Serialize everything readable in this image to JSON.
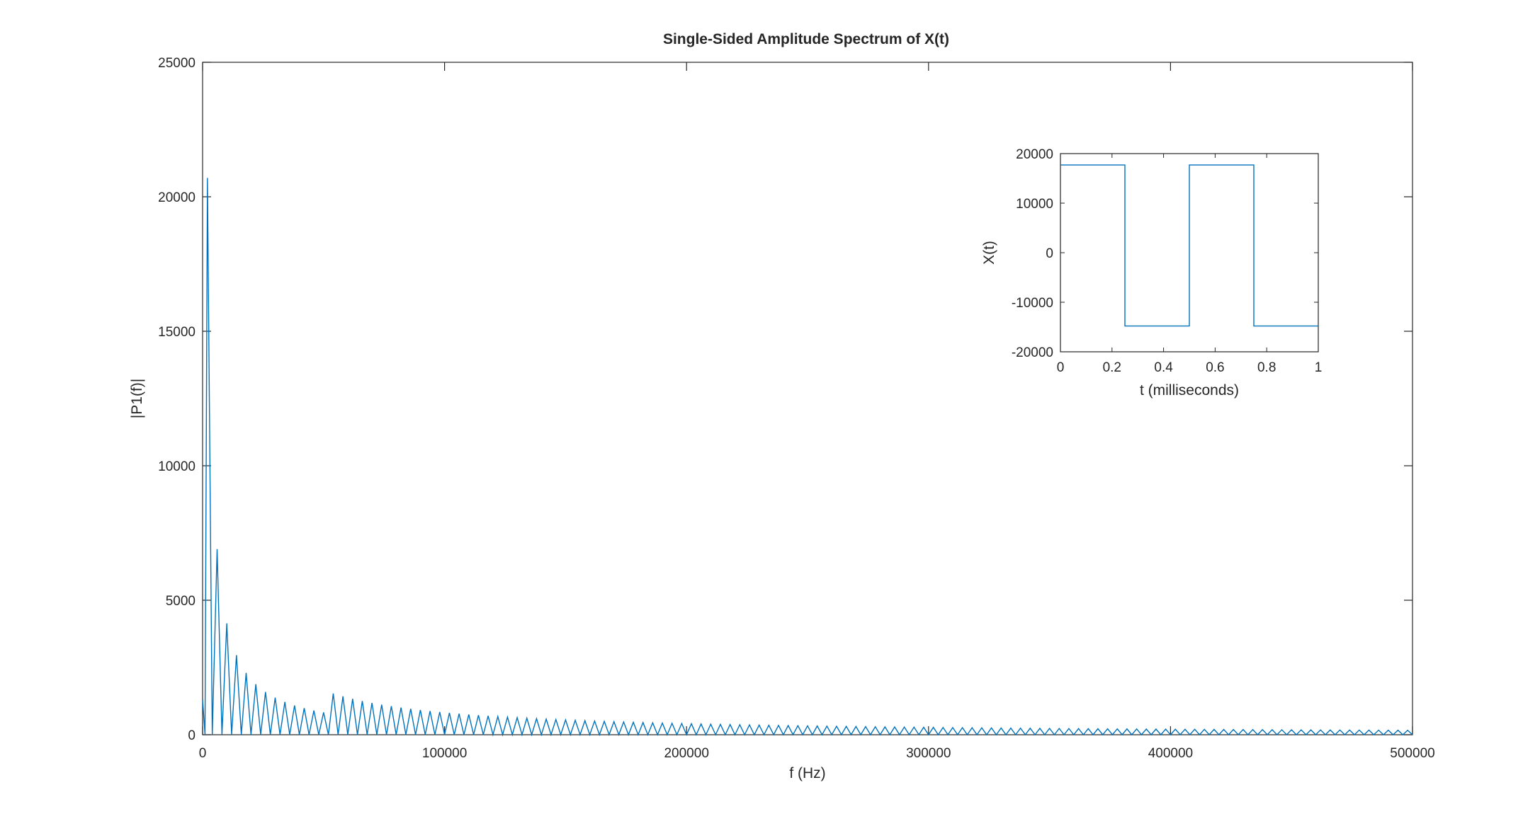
{
  "chart_data": [
    {
      "type": "line",
      "title": "Single-Sided Amplitude Spectrum of X(t)",
      "xlabel": "f (Hz)",
      "ylabel": "|P1(f)|",
      "xlim": [
        0,
        500000
      ],
      "ylim": [
        0,
        25000
      ],
      "xticks": [
        0,
        100000,
        200000,
        300000,
        400000,
        500000
      ],
      "yticks": [
        0,
        5000,
        10000,
        15000,
        20000,
        25000
      ],
      "grid": false,
      "line_color": "#0072BD",
      "series": [
        {
          "fundamental_hz": 2000,
          "harmonic_spacing_hz": 4000,
          "dc_value": 1300,
          "peaks": [
            {
              "x": 2000,
              "y": 20700
            },
            {
              "x": 6000,
              "y": 6900
            },
            {
              "x": 10000,
              "y": 4140
            },
            {
              "x": 14000,
              "y": 2960
            },
            {
              "x": 18000,
              "y": 2300
            },
            {
              "x": 22000,
              "y": 1880
            },
            {
              "x": 26000,
              "y": 1590
            },
            {
              "x": 30000,
              "y": 1380
            },
            {
              "x": 34000,
              "y": 1220
            },
            {
              "x": 38000,
              "y": 1090
            },
            {
              "x": 42000,
              "y": 990
            },
            {
              "x": 46000,
              "y": 900
            },
            {
              "x": 50000,
              "y": 830
            }
          ],
          "tail_model": "y = 41400 / harmonic_order, minimum 150"
        }
      ]
    },
    {
      "type": "line",
      "inset": true,
      "title": "",
      "xlabel": "t (milliseconds)",
      "ylabel": "X(t)",
      "xlim": [
        0,
        1
      ],
      "ylim": [
        -20000,
        20000
      ],
      "xticks": [
        0,
        0.2,
        0.4,
        0.6,
        0.8,
        1
      ],
      "xtick_labels": [
        "0",
        "0.2",
        "0.4",
        "0.6",
        "0.8",
        "1"
      ],
      "yticks": [
        -20000,
        -10000,
        0,
        10000,
        20000
      ],
      "grid": false,
      "line_color": "#0072BD",
      "series": [
        {
          "x": [
            0,
            0.25,
            0.25,
            0.5,
            0.5,
            0.75,
            0.75,
            1
          ],
          "y": [
            17700,
            17700,
            -14800,
            -14800,
            17700,
            17700,
            -14800,
            -14800
          ]
        }
      ]
    }
  ]
}
